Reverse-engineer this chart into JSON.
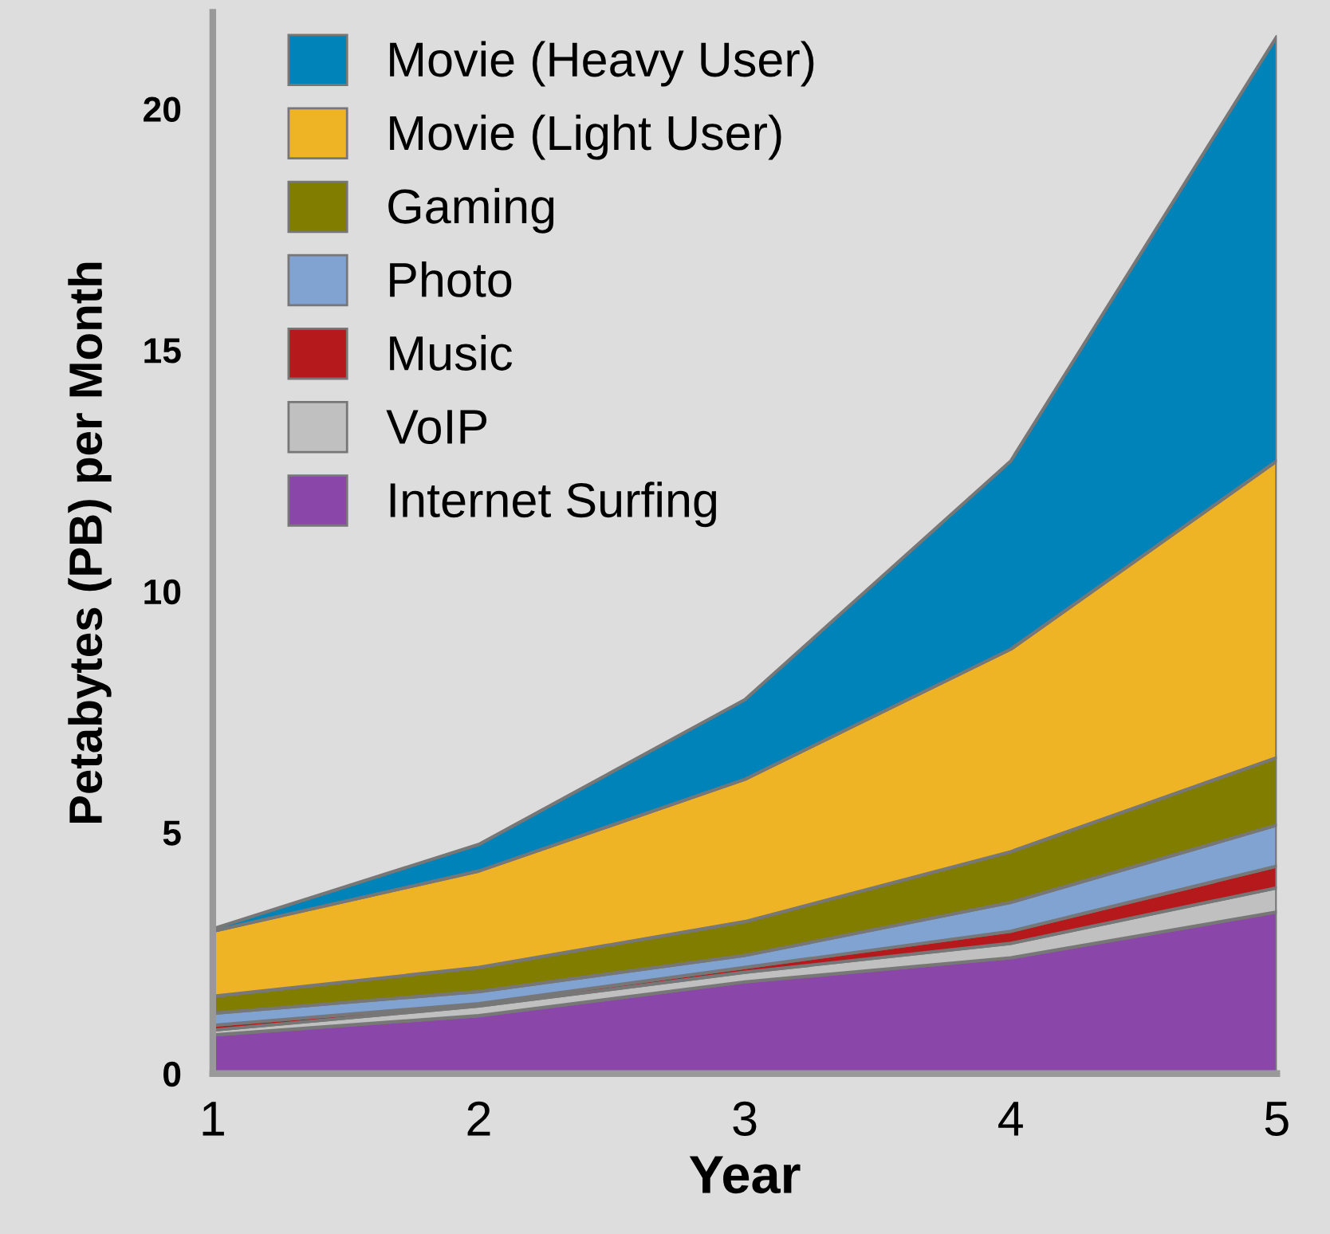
{
  "chart_data": {
    "type": "area",
    "stacked": true,
    "xlabel": "Year",
    "ylabel": "Petabytes (PB) per Month",
    "x": [
      1,
      2,
      3,
      4,
      5
    ],
    "xlim": [
      1,
      5
    ],
    "xticks": [
      1,
      2,
      3,
      4,
      5
    ],
    "ylim": [
      0,
      22
    ],
    "yticks": [
      0,
      5,
      10,
      15,
      20
    ],
    "grid": false,
    "legend": "top left",
    "series": [
      {
        "name": "Internet Surfing",
        "color": "#8a46a8",
        "values": [
          0.8,
          1.2,
          1.9,
          2.4,
          3.35
        ]
      },
      {
        "name": "VoIP",
        "color": "#c0c0c0",
        "values": [
          0.1,
          0.2,
          0.2,
          0.3,
          0.5
        ]
      },
      {
        "name": "Music",
        "color": "#b5191b",
        "values": [
          0.1,
          0.05,
          0.1,
          0.25,
          0.45
        ]
      },
      {
        "name": "Photo",
        "color": "#81a3d2",
        "values": [
          0.25,
          0.25,
          0.25,
          0.6,
          0.85
        ]
      },
      {
        "name": "Gaming",
        "color": "#807d00",
        "values": [
          0.35,
          0.5,
          0.7,
          1.05,
          1.4
        ]
      },
      {
        "name": "Movie (Light User)",
        "color": "#eeb425",
        "values": [
          1.35,
          2.0,
          2.95,
          4.2,
          6.15
        ]
      },
      {
        "name": "Movie (Heavy User)",
        "color": "#0083b8",
        "values": [
          0.05,
          0.55,
          1.65,
          3.9,
          8.8
        ]
      }
    ]
  }
}
